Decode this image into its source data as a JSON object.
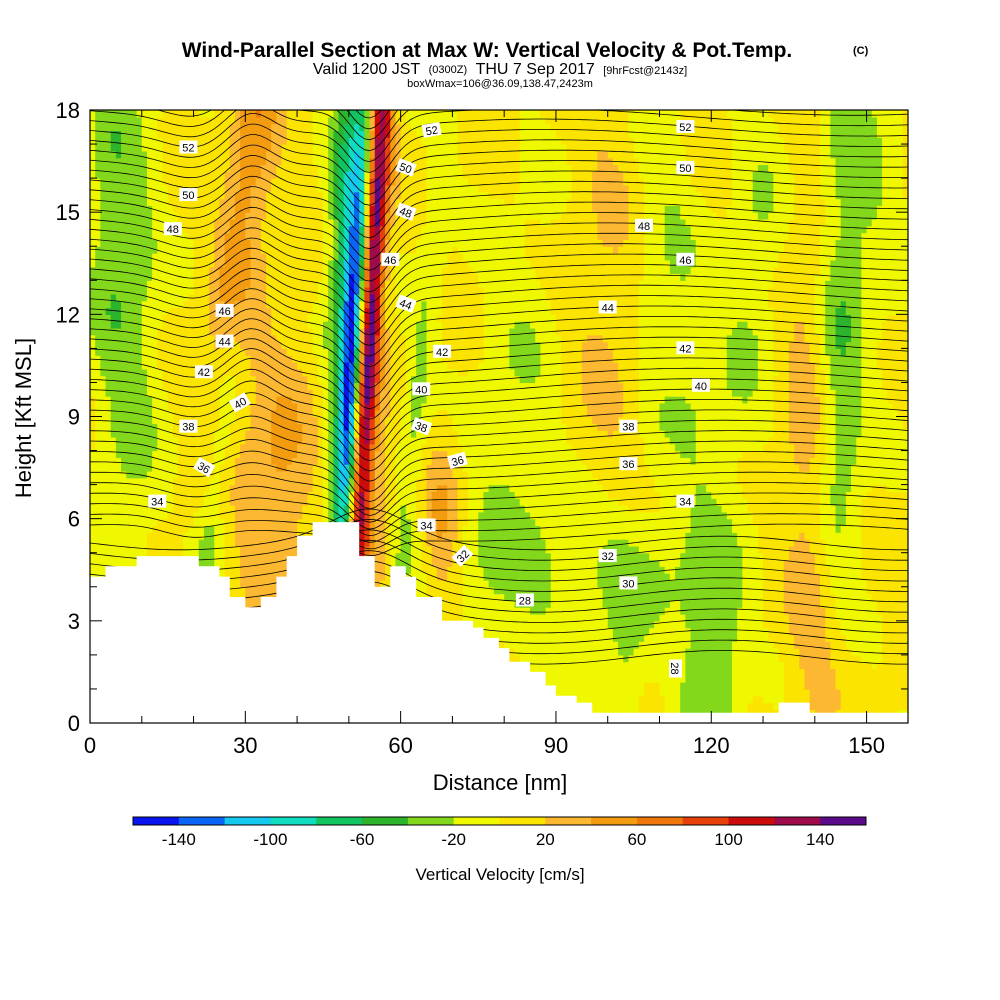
{
  "chart_data": {
    "type": "heatmap",
    "title": "Wind-Parallel Section at Max W: Vertical Velocity & Pot.Temp.",
    "title_mark": "(C)",
    "subtitle": {
      "valid": "Valid 1200 JST",
      "utc": "(0300Z)",
      "date": "THU 7 Sep 2017",
      "forecast": "[9hrFcst@2143z]"
    },
    "annotation": "boxWmax=106@36.09,138.47,2423m",
    "xlabel": "Distance [nm]",
    "ylabel": "Height [Kft MSL]",
    "xlim": [
      0,
      158
    ],
    "ylim": [
      0,
      18
    ],
    "x_ticks": [
      "0",
      "30",
      "60",
      "90",
      "120",
      "150"
    ],
    "y_ticks": [
      "0",
      "3",
      "6",
      "9",
      "12",
      "15",
      "18"
    ],
    "colorbar": {
      "label": "Vertical Velocity [cm/s]",
      "ticks": [
        "-140",
        "-100",
        "-60",
        "-20",
        "20",
        "60",
        "100",
        "140"
      ],
      "bins": [
        -160,
        -140,
        -120,
        -100,
        -80,
        -60,
        -40,
        -20,
        0,
        20,
        40,
        60,
        80,
        100,
        120,
        140,
        160
      ],
      "colors": [
        "#0a14ee",
        "#0a64f5",
        "#14c8f0",
        "#10dcc0",
        "#12c460",
        "#2cb42c",
        "#84d81c",
        "#f0f800",
        "#fbe400",
        "#fcb830",
        "#f49c10",
        "#f0780a",
        "#e8400a",
        "#cc0c0c",
        "#9e0a4a",
        "#5a0a8a"
      ]
    },
    "w_features": [
      {
        "x": 54,
        "y": 12,
        "w": 160,
        "sx": 1.6,
        "sy": 9,
        "tilt": 0.4
      },
      {
        "x": 55,
        "y": 5.5,
        "w": 30,
        "sx": 3,
        "sy": 3,
        "tilt": 0
      },
      {
        "x": 50.5,
        "y": 10,
        "w": -160,
        "sx": 1.6,
        "sy": 6,
        "tilt": 0.3
      },
      {
        "x": 49,
        "y": 15,
        "w": -60,
        "sx": 2.2,
        "sy": 5,
        "tilt": 0.2
      },
      {
        "x": 62,
        "y": 8,
        "w": -30,
        "sx": 2,
        "sy": 7,
        "tilt": 0.7
      },
      {
        "x": 68,
        "y": 5.5,
        "w": 40,
        "sx": 2.5,
        "sy": 2,
        "tilt": 0
      },
      {
        "x": 30,
        "y": 15,
        "w": 60,
        "sx": 3,
        "sy": 5,
        "tilt": 0.8
      },
      {
        "x": 36,
        "y": 7,
        "w": 40,
        "sx": 5,
        "sy": 3,
        "tilt": 0.3
      },
      {
        "x": 25,
        "y": 8,
        "w": -40,
        "sx": 2,
        "sy": 5,
        "tilt": 0.8
      },
      {
        "x": 8,
        "y": 12,
        "w": -35,
        "sx": 4,
        "sy": 6,
        "tilt": 0
      },
      {
        "x": 3,
        "y": 15,
        "w": -25,
        "sx": 3,
        "sy": 4,
        "tilt": 0
      },
      {
        "x": 96,
        "y": 4.5,
        "w": -30,
        "sx": 18,
        "sy": 1.3,
        "tilt": 0
      },
      {
        "x": 82,
        "y": 9,
        "w": -22,
        "sx": 6,
        "sy": 5,
        "tilt": 0.6
      },
      {
        "x": 110,
        "y": 13.5,
        "w": -22,
        "sx": 4,
        "sy": 5,
        "tilt": 0
      },
      {
        "x": 118,
        "y": 9,
        "w": -20,
        "sx": 4,
        "sy": 4,
        "tilt": -0.5
      },
      {
        "x": 128,
        "y": 13,
        "w": -25,
        "sx": 4,
        "sy": 4,
        "tilt": 0.5
      },
      {
        "x": 145,
        "y": 9,
        "w": -35,
        "sx": 3,
        "sy": 6,
        "tilt": 0
      },
      {
        "x": 150,
        "y": 16,
        "w": -25,
        "sx": 5,
        "sy": 4,
        "tilt": 0
      },
      {
        "x": 103,
        "y": 1.5,
        "w": -28,
        "sx": 3,
        "sy": 2,
        "tilt": 0
      },
      {
        "x": 117,
        "y": 1.5,
        "w": -28,
        "sx": 3,
        "sy": 2,
        "tilt": 0
      },
      {
        "x": 123,
        "y": 1.5,
        "w": -28,
        "sx": 2.5,
        "sy": 2,
        "tilt": 0
      },
      {
        "x": 143,
        "y": 2,
        "w": 25,
        "sx": 4,
        "sy": 2,
        "tilt": 0
      },
      {
        "x": 138,
        "y": 8.5,
        "w": 25,
        "sx": 3,
        "sy": 5,
        "tilt": 0
      },
      {
        "x": 100,
        "y": 13,
        "w": 18,
        "sx": 6,
        "sy": 5,
        "tilt": 0
      }
    ],
    "terrain": [
      [
        0,
        4.3
      ],
      [
        3,
        4.3
      ],
      [
        3,
        4.6
      ],
      [
        9,
        4.6
      ],
      [
        9,
        4.9
      ],
      [
        21,
        4.9
      ],
      [
        21,
        4.6
      ],
      [
        25,
        4.6
      ],
      [
        25,
        4.3
      ],
      [
        27,
        4.3
      ],
      [
        27,
        3.7
      ],
      [
        30,
        3.7
      ],
      [
        30,
        3.4
      ],
      [
        33,
        3.4
      ],
      [
        33,
        3.7
      ],
      [
        36,
        3.7
      ],
      [
        36,
        4.3
      ],
      [
        38,
        4.3
      ],
      [
        38,
        4.9
      ],
      [
        40,
        4.9
      ],
      [
        40,
        5.5
      ],
      [
        43,
        5.5
      ],
      [
        43,
        5.9
      ],
      [
        52,
        5.9
      ],
      [
        52,
        4.9
      ],
      [
        55,
        4.9
      ],
      [
        55,
        4.0
      ],
      [
        58,
        4.0
      ],
      [
        58,
        4.6
      ],
      [
        61,
        4.6
      ],
      [
        61,
        4.3
      ],
      [
        63,
        4.3
      ],
      [
        63,
        3.7
      ],
      [
        68,
        3.7
      ],
      [
        68,
        3.0
      ],
      [
        74,
        3.0
      ],
      [
        74,
        2.8
      ],
      [
        76,
        2.8
      ],
      [
        76,
        2.5
      ],
      [
        79,
        2.5
      ],
      [
        79,
        2.2
      ],
      [
        81,
        2.2
      ],
      [
        81,
        1.8
      ],
      [
        85,
        1.8
      ],
      [
        85,
        1.5
      ],
      [
        88,
        1.5
      ],
      [
        88,
        1.1
      ],
      [
        90,
        1.1
      ],
      [
        90,
        0.8
      ],
      [
        94,
        0.8
      ],
      [
        94,
        0.6
      ],
      [
        97,
        0.6
      ],
      [
        97,
        0.3
      ],
      [
        133,
        0.3
      ],
      [
        133,
        0.6
      ],
      [
        139,
        0.6
      ],
      [
        139,
        0.3
      ],
      [
        158,
        0.3
      ]
    ],
    "theta_labels": [
      {
        "text": "52",
        "x": 19,
        "y": 16.9,
        "rot": 0
      },
      {
        "text": "50",
        "x": 19,
        "y": 15.5,
        "rot": 0
      },
      {
        "text": "48",
        "x": 16,
        "y": 14.5,
        "rot": 0
      },
      {
        "text": "46",
        "x": 26,
        "y": 12.1,
        "rot": 0
      },
      {
        "text": "44",
        "x": 26,
        "y": 11.2,
        "rot": 0
      },
      {
        "text": "42",
        "x": 22,
        "y": 10.3,
        "rot": 0
      },
      {
        "text": "40",
        "x": 29,
        "y": 9.4,
        "rot": -30
      },
      {
        "text": "38",
        "x": 19,
        "y": 8.7,
        "rot": 0
      },
      {
        "text": "36",
        "x": 22,
        "y": 7.5,
        "rot": 30
      },
      {
        "text": "34",
        "x": 13,
        "y": 6.5,
        "rot": 0
      },
      {
        "text": "52",
        "x": 66,
        "y": 17.4,
        "rot": -10
      },
      {
        "text": "50",
        "x": 61,
        "y": 16.3,
        "rot": 20
      },
      {
        "text": "48",
        "x": 61,
        "y": 15.0,
        "rot": 20
      },
      {
        "text": "46",
        "x": 58,
        "y": 13.6,
        "rot": 0
      },
      {
        "text": "44",
        "x": 61,
        "y": 12.3,
        "rot": 20
      },
      {
        "text": "42",
        "x": 68,
        "y": 10.9,
        "rot": 0
      },
      {
        "text": "40",
        "x": 64,
        "y": 9.8,
        "rot": 0
      },
      {
        "text": "38",
        "x": 64,
        "y": 8.7,
        "rot": 20
      },
      {
        "text": "36",
        "x": 71,
        "y": 7.7,
        "rot": -15
      },
      {
        "text": "34",
        "x": 65,
        "y": 5.8,
        "rot": 0
      },
      {
        "text": "32",
        "x": 72,
        "y": 4.9,
        "rot": -45
      },
      {
        "text": "28",
        "x": 84,
        "y": 3.6,
        "rot": 0
      },
      {
        "text": "52",
        "x": 115,
        "y": 17.5,
        "rot": 0
      },
      {
        "text": "50",
        "x": 115,
        "y": 16.3,
        "rot": 0
      },
      {
        "text": "48",
        "x": 107,
        "y": 14.6,
        "rot": 0
      },
      {
        "text": "46",
        "x": 115,
        "y": 13.6,
        "rot": 0
      },
      {
        "text": "44",
        "x": 100,
        "y": 12.2,
        "rot": 0
      },
      {
        "text": "42",
        "x": 115,
        "y": 11.0,
        "rot": 0
      },
      {
        "text": "40",
        "x": 118,
        "y": 9.9,
        "rot": 0
      },
      {
        "text": "38",
        "x": 104,
        "y": 8.7,
        "rot": 0
      },
      {
        "text": "36",
        "x": 104,
        "y": 7.6,
        "rot": 0
      },
      {
        "text": "34",
        "x": 115,
        "y": 6.5,
        "rot": 0
      },
      {
        "text": "32",
        "x": 100,
        "y": 4.9,
        "rot": 0
      },
      {
        "text": "30",
        "x": 104,
        "y": 4.1,
        "rot": 0
      },
      {
        "text": "28",
        "x": 113,
        "y": 1.6,
        "rot": 90
      }
    ]
  }
}
